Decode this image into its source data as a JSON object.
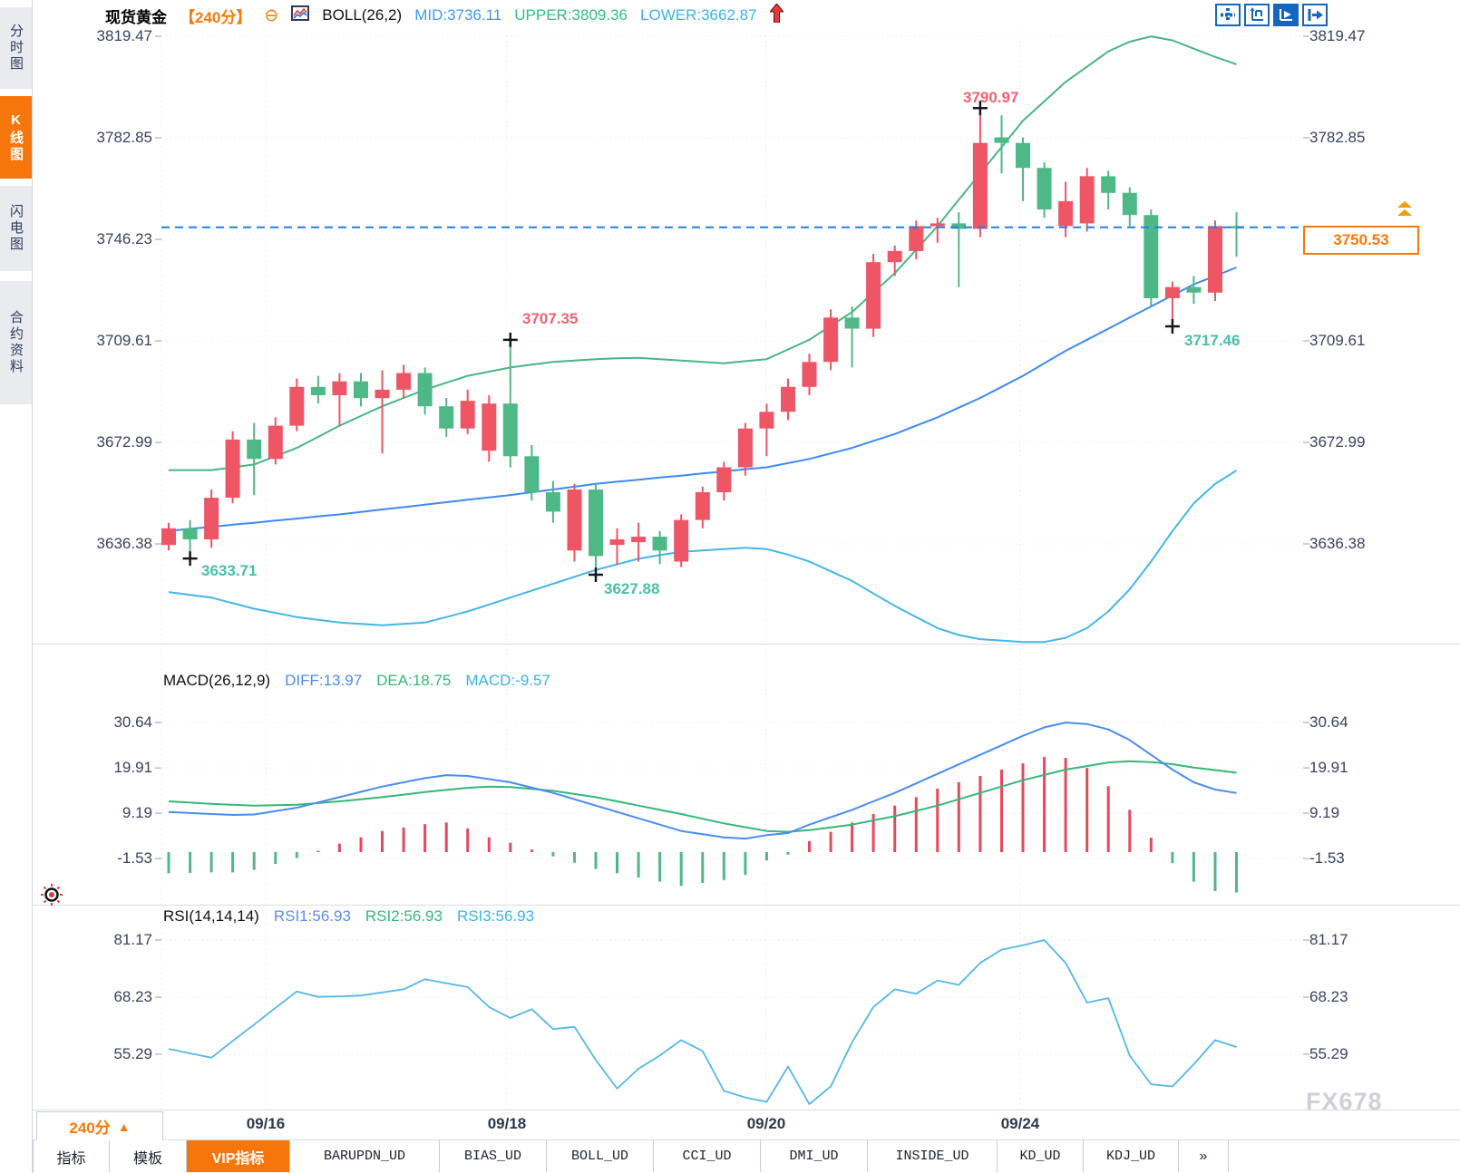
{
  "sidebar": {
    "tabs": [
      {
        "label": "分时图",
        "active": false
      },
      {
        "label": "K线图",
        "active": true
      },
      {
        "label": "闪电图",
        "active": false
      },
      {
        "label": "合约资料",
        "active": false
      }
    ]
  },
  "header": {
    "symbol": "现货黄金",
    "period": "【240分】",
    "collapse_icon": "⊖",
    "indicator": "BOLL(26,2)",
    "mid_label": "MID:3736.11",
    "upper_label": "UPPER:3809.36",
    "lower_label": "LOWER:3662.87"
  },
  "toolbar": {
    "icons": [
      "move-icon",
      "y-axis-scale-icon",
      "x-axis-scale-icon",
      "pop-out-icon"
    ]
  },
  "price_axis": [
    "3819.47",
    "3782.85",
    "3746.23",
    "3709.61",
    "3672.99",
    "3636.38"
  ],
  "macd_axis": [
    "30.64",
    "19.91",
    "9.19",
    "-1.53"
  ],
  "rsi_axis": [
    "81.17",
    "68.23",
    "55.29"
  ],
  "dates": [
    "09/16",
    "09/18",
    "09/20",
    "09/24"
  ],
  "annotations": {
    "low1": "3633.71",
    "high1": "3707.35",
    "peak": "3790.97",
    "low2": "3627.88",
    "low3": "3717.46"
  },
  "current_price": "3750.53",
  "macd_header": {
    "name": "MACD(26,12,9)",
    "diff": "DIFF:13.97",
    "dea": "DEA:18.75",
    "macd": "MACD:-9.57"
  },
  "rsi_header": {
    "name": "RSI(14,14,14)",
    "rsi1": "RSI1:56.93",
    "rsi2": "RSI2:56.93",
    "rsi3": "RSI3:56.93"
  },
  "period_selector": {
    "label": "240分",
    "arrow": "▲"
  },
  "bottom_tabs": [
    {
      "label": "指标",
      "active": false
    },
    {
      "label": "模板",
      "active": false
    },
    {
      "label": "VIP指标",
      "active": true
    },
    {
      "label": "BARUPDN_UD",
      "active": false
    },
    {
      "label": "BIAS_UD",
      "active": false
    },
    {
      "label": "BOLL_UD",
      "active": false
    },
    {
      "label": "CCI_UD",
      "active": false
    },
    {
      "label": "DMI_UD",
      "active": false
    },
    {
      "label": "INSIDE_UD",
      "active": false
    },
    {
      "label": "KD_UD",
      "active": false
    },
    {
      "label": "KDJ_UD",
      "active": false
    },
    {
      "label": "»",
      "active": false
    }
  ],
  "watermark": "FX678",
  "colors": {
    "up": "#ee5565",
    "down": "#4eb987",
    "boll_mid": "#3d8bf0",
    "boll_upper": "#49b683",
    "boll_lower": "#45b6e8",
    "macd_diff": "#4a8df2",
    "macd_dea": "#35b879",
    "hist_up": "#e8485a",
    "hist_down": "#4eb987",
    "rsi_line": "#54b8e8",
    "price_line": "#1e80f0",
    "accent": "#f7790a",
    "high_label": "#f0626f",
    "low_label": "#46c0ab"
  },
  "chart_data": {
    "type": "candlestick",
    "title": "现货黄金 240分 K线图",
    "indicator_boll": {
      "period": 26,
      "dev": 2,
      "mid": 3736.11,
      "upper": 3809.36,
      "lower": 3662.87
    },
    "indicator_macd": {
      "params": [
        26,
        12,
        9
      ],
      "diff": 13.97,
      "dea": 18.75,
      "macd": -9.57
    },
    "indicator_rsi": {
      "params": [
        14,
        14,
        14
      ],
      "rsi1": 56.93,
      "rsi2": 56.93,
      "rsi3": 56.93
    },
    "last_price": 3750.53,
    "y_ticks": [
      3819.47,
      3782.85,
      3746.23,
      3709.61,
      3672.99,
      3636.38
    ],
    "macd_ticks": [
      30.64,
      19.91,
      9.19,
      -1.53
    ],
    "rsi_ticks": [
      81.17,
      68.23,
      55.29
    ],
    "date_ticks": [
      {
        "label": "09/16",
        "index": 4.55
      },
      {
        "label": "09/18",
        "index": 15.83
      },
      {
        "label": "09/20",
        "index": 27.96
      },
      {
        "label": "09/24",
        "index": 39.87
      }
    ],
    "marked_points": [
      {
        "index": 1,
        "price": 3633.71,
        "type": "low"
      },
      {
        "index": 16,
        "price": 3707.35,
        "type": "high"
      },
      {
        "index": 20,
        "price": 3627.88,
        "type": "low"
      },
      {
        "index": 38,
        "price": 3790.97,
        "type": "high"
      },
      {
        "index": 47,
        "price": 3717.46,
        "type": "low"
      }
    ],
    "candles": [
      [
        3636,
        3644,
        3634,
        3642
      ],
      [
        3642,
        3645,
        3633.71,
        3638
      ],
      [
        3638,
        3656,
        3635,
        3653
      ],
      [
        3653,
        3677,
        3651,
        3674
      ],
      [
        3674,
        3680,
        3654,
        3667
      ],
      [
        3667,
        3682,
        3665,
        3679
      ],
      [
        3679,
        3696,
        3677,
        3693
      ],
      [
        3693,
        3697,
        3687,
        3690
      ],
      [
        3690,
        3698,
        3679,
        3695
      ],
      [
        3695,
        3698,
        3686,
        3689
      ],
      [
        3689,
        3699,
        3669,
        3692
      ],
      [
        3692,
        3701,
        3689,
        3698
      ],
      [
        3698,
        3700,
        3683,
        3686
      ],
      [
        3686,
        3689,
        3675,
        3678
      ],
      [
        3678,
        3692,
        3676,
        3688
      ],
      [
        3670,
        3690,
        3666,
        3687
      ],
      [
        3687,
        3707.35,
        3664,
        3668
      ],
      [
        3668,
        3672,
        3652,
        3655
      ],
      [
        3655,
        3659,
        3644,
        3648
      ],
      [
        3634,
        3658,
        3630,
        3656
      ],
      [
        3656,
        3658,
        3627.88,
        3632
      ],
      [
        3636,
        3642,
        3629,
        3638
      ],
      [
        3637,
        3644,
        3630,
        3639
      ],
      [
        3639,
        3641,
        3629,
        3634
      ],
      [
        3630,
        3647,
        3628,
        3645
      ],
      [
        3645,
        3657,
        3642,
        3655
      ],
      [
        3655,
        3666,
        3652,
        3664
      ],
      [
        3664,
        3680,
        3661,
        3678
      ],
      [
        3678,
        3687,
        3668,
        3684
      ],
      [
        3684,
        3696,
        3681,
        3693
      ],
      [
        3693,
        3705,
        3690,
        3702
      ],
      [
        3702,
        3721,
        3699,
        3718
      ],
      [
        3718,
        3722,
        3700,
        3714
      ],
      [
        3714,
        3741,
        3711,
        3738
      ],
      [
        3738,
        3744,
        3733,
        3742
      ],
      [
        3742,
        3753,
        3739,
        3751
      ],
      [
        3751,
        3754,
        3745,
        3752
      ],
      [
        3752,
        3756,
        3729,
        3750
      ],
      [
        3750,
        3790.97,
        3747,
        3781
      ],
      [
        3783,
        3791,
        3770,
        3781
      ],
      [
        3781,
        3783,
        3760,
        3772
      ],
      [
        3772,
        3774,
        3754,
        3757
      ],
      [
        3751,
        3767,
        3747,
        3760
      ],
      [
        3752,
        3772,
        3749,
        3769
      ],
      [
        3769,
        3771,
        3757,
        3763
      ],
      [
        3763,
        3765,
        3751,
        3755
      ],
      [
        3755,
        3757,
        3722,
        3725
      ],
      [
        3725,
        3731,
        3717.46,
        3729
      ],
      [
        3729,
        3733,
        3723,
        3727
      ],
      [
        3727,
        3753,
        3724,
        3751
      ],
      [
        3751,
        3756,
        3740,
        3750.53
      ]
    ],
    "boll_upper_series": [
      3663,
      3663,
      3663,
      3664,
      3665,
      3668,
      3671,
      3675,
      3679,
      3682.5,
      3686,
      3689,
      3692,
      3694.5,
      3697,
      3698.5,
      3700,
      3701,
      3702,
      3702.5,
      3703,
      3703.3,
      3703.5,
      3703,
      3702.5,
      3702,
      3701.5,
      3702.3,
      3703,
      3706.5,
      3710,
      3715,
      3720,
      3727,
      3734,
      3742.5,
      3751,
      3760.5,
      3770,
      3779.5,
      3789,
      3796,
      3803,
      3808.5,
      3814,
      3817.5,
      3819.4,
      3818,
      3815,
      3812,
      3809.36
    ],
    "boll_mid_series": [
      3641,
      3641.8,
      3642.5,
      3643.3,
      3644,
      3644.8,
      3645.5,
      3646.3,
      3647,
      3647.9,
      3648.8,
      3649.6,
      3650.5,
      3651.4,
      3652.3,
      3653.1,
      3654,
      3655,
      3656,
      3657,
      3658,
      3658.8,
      3659.5,
      3660.3,
      3661,
      3661.8,
      3662.5,
      3663.3,
      3664,
      3665.5,
      3667,
      3669,
      3671,
      3673.5,
      3676,
      3679,
      3682,
      3685.5,
      3689,
      3693,
      3697,
      3701.5,
      3706,
      3710,
      3714,
      3718,
      3722,
      3726,
      3730,
      3733,
      3736.11
    ],
    "boll_lower_series": [
      3619,
      3618,
      3617,
      3615,
      3613,
      3611.5,
      3610,
      3609,
      3608,
      3607.5,
      3607,
      3607.5,
      3608,
      3610,
      3612,
      3614.5,
      3617,
      3619.5,
      3622,
      3624.5,
      3627,
      3629,
      3631,
      3632.3,
      3633.5,
      3634,
      3634.5,
      3635,
      3634.5,
      3632.5,
      3630,
      3626.5,
      3623,
      3618.5,
      3614,
      3610,
      3606,
      3603.5,
      3602,
      3601.5,
      3601,
      3601,
      3602.5,
      3606,
      3612,
      3620,
      3630,
      3641,
      3651,
      3658,
      3662.87
    ],
    "macd_diff_series": [
      9.5,
      9.25,
      9,
      8.8,
      8.9,
      9.7,
      10.5,
      11.75,
      13,
      14.25,
      15.5,
      16.5,
      17.5,
      18.2,
      18,
      17.25,
      16.5,
      15.25,
      14,
      12.5,
      11,
      9.5,
      8,
      6.5,
      5,
      4.25,
      3.5,
      3.2,
      4,
      4.5,
      6.5,
      8.25,
      10,
      12,
      14,
      16.25,
      18.5,
      20.75,
      23,
      25.25,
      27.5,
      29.5,
      30.64,
      30.3,
      29,
      26.5,
      23,
      19.5,
      16.5,
      14.8,
      13.97
    ],
    "macd_dea_series": [
      12,
      11.7,
      11.4,
      11.2,
      11,
      11.1,
      11.2,
      11.6,
      12,
      12.5,
      13,
      13.6,
      14.2,
      14.7,
      15.2,
      15.5,
      15.4,
      14.95,
      14.5,
      13.75,
      13,
      12,
      11,
      10,
      9,
      7.9,
      6.8,
      5.9,
      5,
      4.8,
      5.2,
      5.85,
      6.5,
      7.5,
      8.5,
      9.75,
      11,
      12.5,
      14,
      15.5,
      17,
      18.25,
      19.5,
      20.35,
      21.2,
      21.5,
      21.3,
      20.8,
      20,
      19.4,
      18.75
    ],
    "macd_hist_series": [
      -5,
      -4.9,
      -4.8,
      -4.8,
      -4.2,
      -2.8,
      -1.4,
      0.3,
      2,
      3.5,
      5,
      5.8,
      6.6,
      7,
      5.6,
      3.5,
      2.2,
      0.6,
      -1,
      -2.5,
      -4,
      -5,
      -6,
      -7,
      -8,
      -7.3,
      -6.6,
      -5.4,
      -2,
      -0.6,
      2.6,
      4.8,
      7,
      9,
      11,
      13,
      15,
      16.5,
      18,
      19.5,
      21,
      22.5,
      22.28,
      19.9,
      15.6,
      10,
      3.4,
      -2.6,
      -7,
      -9.2,
      -9.56
    ],
    "rsi_series": [
      56.5,
      55.5,
      54.5,
      58.3,
      62,
      65.8,
      69.5,
      68.3,
      68.4,
      68.6,
      69.3,
      70,
      72.3,
      71.4,
      70.5,
      66,
      63.5,
      65.5,
      61,
      61.5,
      54,
      47.5,
      52,
      55,
      58.5,
      56,
      47,
      45.5,
      44.5,
      52.5,
      44,
      48,
      58,
      66,
      70,
      69,
      72,
      71,
      76,
      79,
      80,
      81.17,
      76,
      67,
      68,
      55,
      48.5,
      48,
      53,
      58.5,
      56.93
    ]
  }
}
